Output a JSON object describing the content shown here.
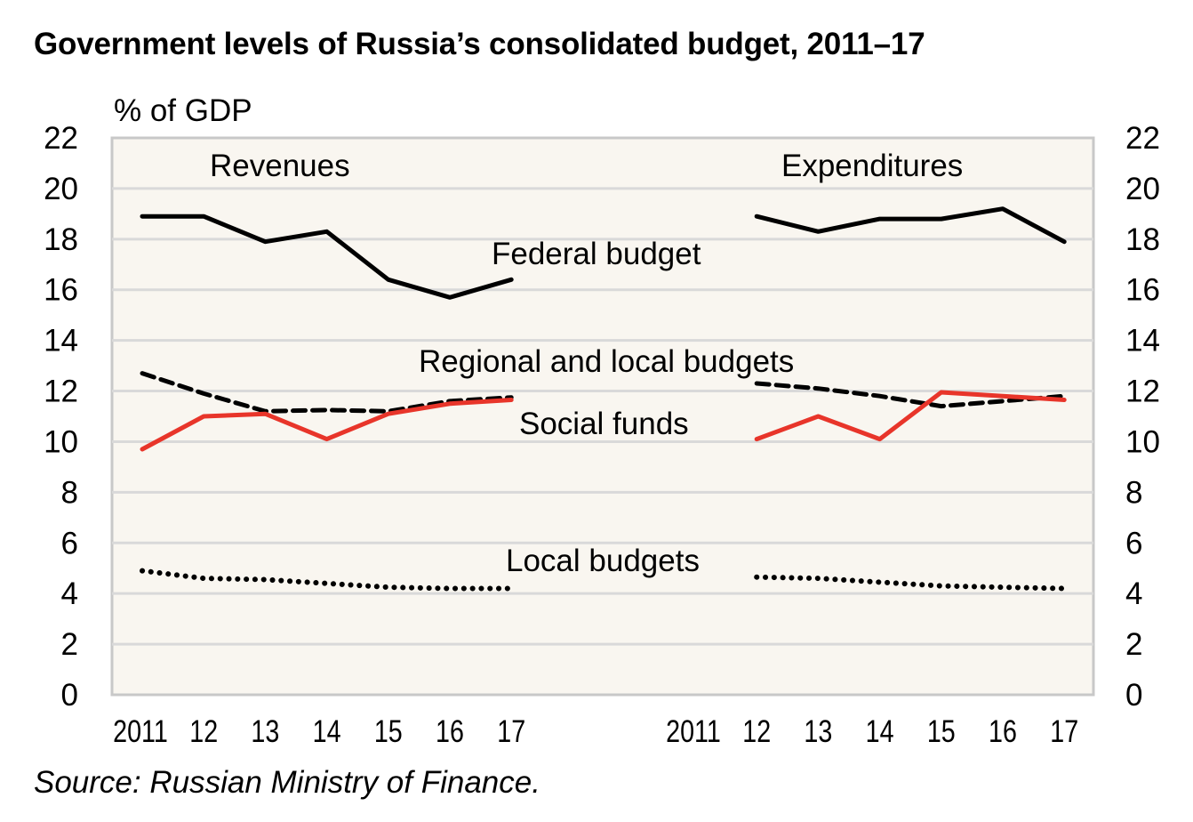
{
  "chart_data": {
    "type": "line",
    "title": "Government levels of Russia’s consolidated budget, 2011–17",
    "ylabel": "% of GDP",
    "xlabel": "",
    "ylim": [
      0,
      22
    ],
    "yticks": [
      "0",
      "2",
      "4",
      "6",
      "8",
      "10",
      "12",
      "14",
      "16",
      "18",
      "20",
      "22"
    ],
    "grid": true,
    "source": "Source: Russian Ministry of Finance.",
    "panels": [
      {
        "name": "Revenues",
        "label": "Revenues",
        "x": [
          "2011",
          "12",
          "13",
          "14",
          "15",
          "16",
          "17"
        ],
        "series": [
          {
            "name": "Federal budget",
            "style": "solid",
            "color": "#000000",
            "values": [
              18.9,
              18.9,
              17.9,
              18.3,
              16.4,
              15.7,
              16.4
            ]
          },
          {
            "name": "Regional and local budgets",
            "style": "dashed",
            "color": "#000000",
            "values": [
              12.7,
              11.9,
              11.2,
              11.25,
              11.2,
              11.6,
              11.75
            ]
          },
          {
            "name": "Social funds",
            "style": "solid",
            "color": "#e8352a",
            "values": [
              9.7,
              11.0,
              11.1,
              10.1,
              11.1,
              11.5,
              11.65
            ]
          },
          {
            "name": "Local budgets",
            "style": "dotted",
            "color": "#000000",
            "values": [
              4.9,
              4.6,
              4.55,
              4.4,
              4.25,
              4.2,
              4.2
            ]
          }
        ]
      },
      {
        "name": "Expenditures",
        "label": "Expenditures",
        "x": [
          "2011",
          "12",
          "13",
          "14",
          "15",
          "16",
          "17"
        ],
        "series": [
          {
            "name": "Federal budget",
            "style": "solid",
            "color": "#000000",
            "values": [
              null,
              18.9,
              18.3,
              18.8,
              18.8,
              19.2,
              17.9
            ]
          },
          {
            "name": "Regional and local budgets",
            "style": "dashed",
            "color": "#000000",
            "values": [
              null,
              12.3,
              12.1,
              11.8,
              11.4,
              11.6,
              11.8
            ]
          },
          {
            "name": "Social funds",
            "style": "solid",
            "color": "#e8352a",
            "values": [
              null,
              10.1,
              11.0,
              10.1,
              11.95,
              11.8,
              11.65
            ]
          },
          {
            "name": "Local budgets",
            "style": "dotted",
            "color": "#000000",
            "values": [
              null,
              4.65,
              4.6,
              4.45,
              4.3,
              4.25,
              4.2
            ]
          }
        ]
      }
    ],
    "annotations": [
      {
        "text": "Federal budget",
        "color": "#000000"
      },
      {
        "text": "Regional and local budgets",
        "color": "#000000"
      },
      {
        "text": "Social funds",
        "color": "#c0302a"
      },
      {
        "text": "Local budgets",
        "color": "#000000"
      }
    ],
    "colors": {
      "plot_background": "#f9f6f0",
      "gridline": "#d9d9d9",
      "social_funds": "#e8352a"
    }
  }
}
